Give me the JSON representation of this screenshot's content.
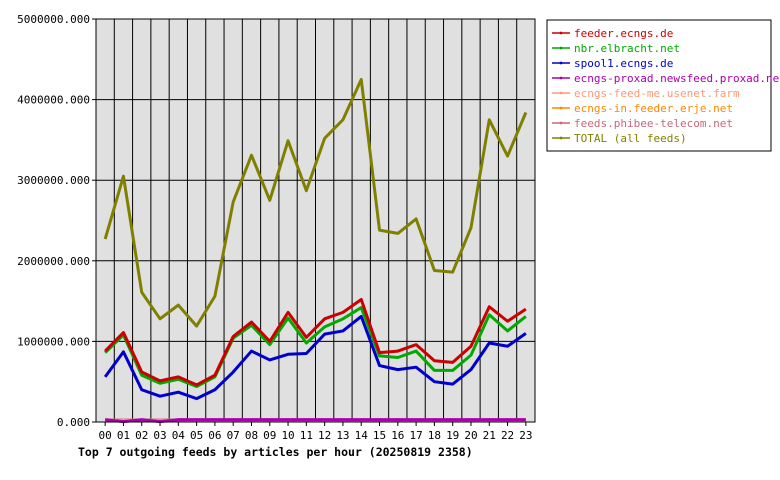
{
  "chart_data": {
    "type": "line",
    "title": "Top 7 outgoing feeds by articles per hour (20250819 2358)",
    "xlabel": "",
    "ylabel": "",
    "categories": [
      "00",
      "01",
      "02",
      "03",
      "04",
      "05",
      "06",
      "07",
      "08",
      "09",
      "10",
      "11",
      "12",
      "13",
      "14",
      "15",
      "16",
      "17",
      "18",
      "19",
      "20",
      "21",
      "22",
      "23"
    ],
    "ylim": [
      0,
      5000000
    ],
    "yticks": [
      "0.000",
      "1000000.000",
      "2000000.000",
      "3000000.000",
      "4000000.000",
      "5000000.000"
    ],
    "grid": true,
    "legend_position": "top-right",
    "series": [
      {
        "name": "feeder.ecngs.de",
        "color": "#cc0000",
        "values": [
          880000,
          1110000,
          620000,
          510000,
          560000,
          460000,
          580000,
          1060000,
          1240000,
          1000000,
          1360000,
          1050000,
          1280000,
          1360000,
          1520000,
          860000,
          880000,
          960000,
          760000,
          740000,
          940000,
          1430000,
          1250000,
          1400000
        ]
      },
      {
        "name": "nbr.elbracht.net",
        "color": "#00aa00",
        "values": [
          860000,
          1080000,
          580000,
          480000,
          530000,
          440000,
          560000,
          1040000,
          1200000,
          960000,
          1290000,
          980000,
          1180000,
          1280000,
          1420000,
          820000,
          800000,
          880000,
          640000,
          640000,
          830000,
          1330000,
          1130000,
          1310000
        ]
      },
      {
        "name": "spool1.ecngs.de",
        "color": "#0000cc",
        "values": [
          560000,
          870000,
          400000,
          320000,
          370000,
          290000,
          400000,
          620000,
          880000,
          770000,
          840000,
          850000,
          1090000,
          1130000,
          1310000,
          700000,
          650000,
          680000,
          500000,
          470000,
          650000,
          980000,
          940000,
          1100000
        ]
      },
      {
        "name": "ecngs-proxad.newsfeed.proxad.net",
        "color": "#aa00aa",
        "values": [
          30000,
          5000,
          30000,
          5000,
          30000,
          30000,
          30000,
          30000,
          30000,
          30000,
          30000,
          30000,
          30000,
          30000,
          30000,
          30000,
          30000,
          30000,
          30000,
          30000,
          30000,
          30000,
          30000,
          30000
        ]
      },
      {
        "name": "ecngs-feed-me.usenet.farm",
        "color": "#ff9977",
        "values": [
          20000,
          20000,
          20000,
          20000,
          20000,
          20000,
          20000,
          20000,
          20000,
          20000,
          20000,
          20000,
          20000,
          20000,
          20000,
          20000,
          20000,
          20000,
          20000,
          20000,
          20000,
          20000,
          20000,
          20000
        ]
      },
      {
        "name": "ecngs-in.feeder.erje.net",
        "color": "#ff8800",
        "values": [
          15000,
          15000,
          15000,
          15000,
          15000,
          15000,
          15000,
          15000,
          15000,
          15000,
          15000,
          15000,
          15000,
          15000,
          15000,
          15000,
          15000,
          15000,
          15000,
          15000,
          15000,
          15000,
          15000,
          15000
        ]
      },
      {
        "name": "feeds.phibee-telecom.net",
        "color": "#cc6677",
        "values": [
          25000,
          25000,
          25000,
          25000,
          25000,
          25000,
          25000,
          25000,
          25000,
          25000,
          25000,
          25000,
          25000,
          25000,
          25000,
          25000,
          25000,
          25000,
          25000,
          25000,
          25000,
          25000,
          25000,
          25000
        ]
      },
      {
        "name": "TOTAL (all feeds)",
        "color": "#808000",
        "values": [
          2270000,
          3050000,
          1610000,
          1280000,
          1450000,
          1190000,
          1560000,
          2730000,
          3310000,
          2750000,
          3490000,
          2870000,
          3520000,
          3750000,
          4250000,
          2380000,
          2340000,
          2520000,
          1880000,
          1860000,
          2410000,
          3750000,
          3300000,
          3840000
        ]
      }
    ]
  }
}
